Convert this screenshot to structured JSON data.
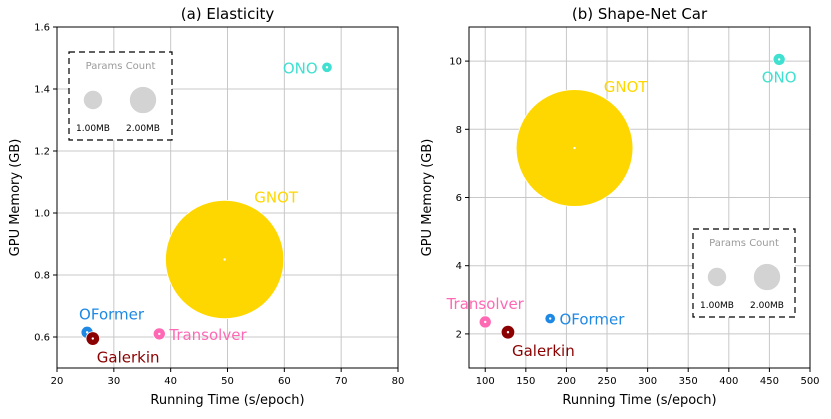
{
  "chart_data": [
    {
      "type": "scatter",
      "title": "(a) Elasticity",
      "xlabel": "Running Time (s/epoch)",
      "ylabel": "GPU Memory (GB)",
      "xlim": [
        20,
        80
      ],
      "ylim": [
        0.5,
        1.6
      ],
      "xticks": [
        20,
        30,
        40,
        50,
        60,
        70,
        80
      ],
      "yticks": [
        0.6,
        0.8,
        1.0,
        1.2,
        1.4,
        1.6
      ],
      "ytick_labels": [
        "0.6",
        "0.8",
        "1.0",
        "1.2",
        "1.4",
        "1.6"
      ],
      "grid": true,
      "points": [
        {
          "name": "ONO",
          "x": 67.5,
          "y": 1.47,
          "params_mb": 0.3,
          "color": "#40e0d0",
          "label_side": "left"
        },
        {
          "name": "GNOT",
          "x": 49.5,
          "y": 0.85,
          "params_mb": 38,
          "color": "#ffd700",
          "label_side": "top-right"
        },
        {
          "name": "OFormer",
          "x": 25.3,
          "y": 0.615,
          "params_mb": 0.4,
          "color": "#1e88e5",
          "label_side": "top-left"
        },
        {
          "name": "Galerkin",
          "x": 26.3,
          "y": 0.595,
          "params_mb": 0.5,
          "color": "#8b0000",
          "label_side": "bottom-right"
        },
        {
          "name": "Transolver",
          "x": 38.0,
          "y": 0.61,
          "params_mb": 0.4,
          "color": "#ff69b4",
          "label_side": "right"
        }
      ],
      "legend": {
        "title": "Params Count",
        "placement": "top-left",
        "items": [
          {
            "label": "1.00MB",
            "params_mb": 1.0
          },
          {
            "label": "2.00MB",
            "params_mb": 2.0
          }
        ]
      }
    },
    {
      "type": "scatter",
      "title": "(b) Shape-Net Car",
      "xlabel": "Running Time (s/epoch)",
      "ylabel": "GPU Memory (GB)",
      "xlim": [
        80,
        500
      ],
      "ylim": [
        1,
        11
      ],
      "xticks": [
        100,
        150,
        200,
        250,
        300,
        350,
        400,
        450,
        500
      ],
      "yticks": [
        2,
        4,
        6,
        8,
        10
      ],
      "ytick_labels": [
        "2",
        "4",
        "6",
        "8",
        "10"
      ],
      "grid": true,
      "points": [
        {
          "name": "ONO",
          "x": 462,
          "y": 10.05,
          "params_mb": 0.4,
          "color": "#40e0d0",
          "label_side": "bottom"
        },
        {
          "name": "GNOT",
          "x": 210,
          "y": 7.45,
          "params_mb": 37,
          "color": "#ffd700",
          "label_side": "top-right"
        },
        {
          "name": "Transolver",
          "x": 100,
          "y": 2.35,
          "params_mb": 0.4,
          "color": "#ff69b4",
          "label_side": "top"
        },
        {
          "name": "OFormer",
          "x": 180,
          "y": 2.45,
          "params_mb": 0.3,
          "color": "#1e88e5",
          "label_side": "right"
        },
        {
          "name": "Galerkin",
          "x": 128,
          "y": 2.05,
          "params_mb": 0.5,
          "color": "#8b0000",
          "label_side": "bottom-right"
        }
      ],
      "legend": {
        "title": "Params Count",
        "placement": "bottom-right",
        "items": [
          {
            "label": "1.00MB",
            "params_mb": 1.0
          },
          {
            "label": "2.00MB",
            "params_mb": 2.0
          }
        ]
      }
    }
  ]
}
